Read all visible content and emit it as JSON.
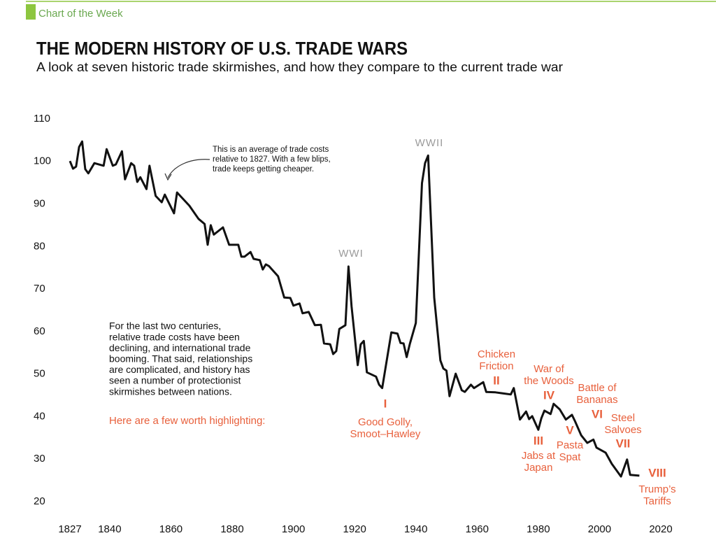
{
  "chart_data": {
    "type": "line",
    "header": "Chart of the Week",
    "title": "THE MODERN HISTORY OF U.S. TRADE WARS",
    "subtitle": "A look at seven historic trade skirmishes, and how they compare to the current trade war",
    "x": [
      1827,
      1828,
      1829,
      1830,
      1831,
      1832,
      1833,
      1835,
      1838,
      1839,
      1841,
      1842,
      1844,
      1845,
      1847,
      1848,
      1849,
      1850,
      1852,
      1853,
      1855,
      1857,
      1858,
      1861,
      1862,
      1866,
      1869,
      1871,
      1872,
      1873,
      1874,
      1877,
      1879,
      1882,
      1883,
      1884,
      1886,
      1887,
      1889,
      1890,
      1891,
      1892,
      1895,
      1897,
      1899,
      1900,
      1902,
      1903,
      1905,
      1907,
      1909,
      1910,
      1912,
      1913,
      1914,
      1915,
      1917,
      1918,
      1919,
      1921,
      1922,
      1923,
      1924,
      1927,
      1928,
      1929,
      1930,
      1932,
      1934,
      1935,
      1936,
      1937,
      1938,
      1940,
      1942,
      1943,
      1944,
      1945,
      1946,
      1948,
      1949,
      1950,
      1951,
      1953,
      1955,
      1956,
      1958,
      1959,
      1962,
      1963,
      1966,
      1968,
      1971,
      1972,
      1974,
      1976,
      1977,
      1978,
      1980,
      1981,
      1982,
      1984,
      1985,
      1987,
      1989,
      1991,
      1992,
      1994,
      1996,
      1998,
      1999,
      2002,
      2004,
      2007,
      2009,
      2010,
      2013
    ],
    "series": [
      {
        "color": "#111111",
        "values": [
          100.1,
          98.3,
          98.8,
          103.4,
          104.7,
          98.2,
          97.2,
          99.6,
          99,
          102.9,
          99,
          99.3,
          102.4,
          95.8,
          99.6,
          99,
          95.2,
          96.3,
          93.5,
          99,
          91.9,
          90.4,
          92.2,
          87.8,
          92.7,
          89.6,
          86.5,
          85.3,
          80.4,
          85,
          82.8,
          84.5,
          80.4,
          80.4,
          77.6,
          77.6,
          78.7,
          77.1,
          76.8,
          74.6,
          75.8,
          75.4,
          73,
          68,
          67.9,
          66.1,
          66.6,
          64.3,
          64.6,
          61.5,
          61.6,
          57.2,
          57,
          54.7,
          55.4,
          60.6,
          61.5,
          75.3,
          65.9,
          52.1,
          57,
          57.8,
          50.4,
          49.4,
          47.5,
          46.7,
          51.1,
          59.8,
          59.5,
          57.3,
          57.2,
          54,
          57,
          62,
          94.9,
          99.6,
          101.4,
          85,
          68,
          53.2,
          51.3,
          50.8,
          44.8,
          50.1,
          46.2,
          45.8,
          47.5,
          46.7,
          48.1,
          45.8,
          45.7,
          45.5,
          45.2,
          46.7,
          39.3,
          41.2,
          39.4,
          40.1,
          36.9,
          39.6,
          41.4,
          40.6,
          43,
          41.7,
          39.3,
          40.4,
          38.9,
          35.6,
          33.8,
          34.6,
          32.7,
          31.5,
          28.9,
          25.9,
          29.9,
          26.3,
          26.1
        ]
      }
    ],
    "xlim": [
      1827,
      2020
    ],
    "xticks": [
      1827,
      1840,
      1860,
      1880,
      1900,
      1920,
      1940,
      1960,
      1980,
      2000,
      2020
    ],
    "ylim": [
      20,
      110
    ],
    "yticks": [
      20,
      30,
      40,
      50,
      60,
      70,
      80,
      90,
      100,
      110
    ],
    "grid": false,
    "callout": [
      "This is an average of trade costs",
      "relative to 1827. With a few blips,",
      "trade keeps getting cheaper."
    ],
    "wars_label": [
      "WWI",
      "WWII"
    ],
    "paragraph": [
      "For the last two centuries,",
      "relative trade costs have been",
      "declining, and international trade",
      "booming. That said, relationships",
      "are complicated, and history has",
      "seen a number of protectionist",
      "skirmishes between nations."
    ],
    "highlight": "Here are a few worth highlighting:",
    "trade_wars": [
      {
        "numeral": "I",
        "label": [
          "Good Golly,",
          "Smoot–Hawley"
        ]
      },
      {
        "numeral": "II",
        "label": [
          "Chicken",
          "Friction"
        ]
      },
      {
        "numeral": "III",
        "label": [
          "Jabs at",
          "Japan"
        ]
      },
      {
        "numeral": "IV",
        "label": [
          "War of",
          "the Woods"
        ]
      },
      {
        "numeral": "V",
        "label": [
          "Pasta",
          "Spat"
        ]
      },
      {
        "numeral": "VI",
        "label": [
          "Battle of",
          "Bananas"
        ]
      },
      {
        "numeral": "VII",
        "label": [
          "Steel",
          "Salvoes"
        ]
      },
      {
        "numeral": "VIII",
        "label": [
          "Trump’s",
          "Tariffs"
        ]
      }
    ]
  }
}
